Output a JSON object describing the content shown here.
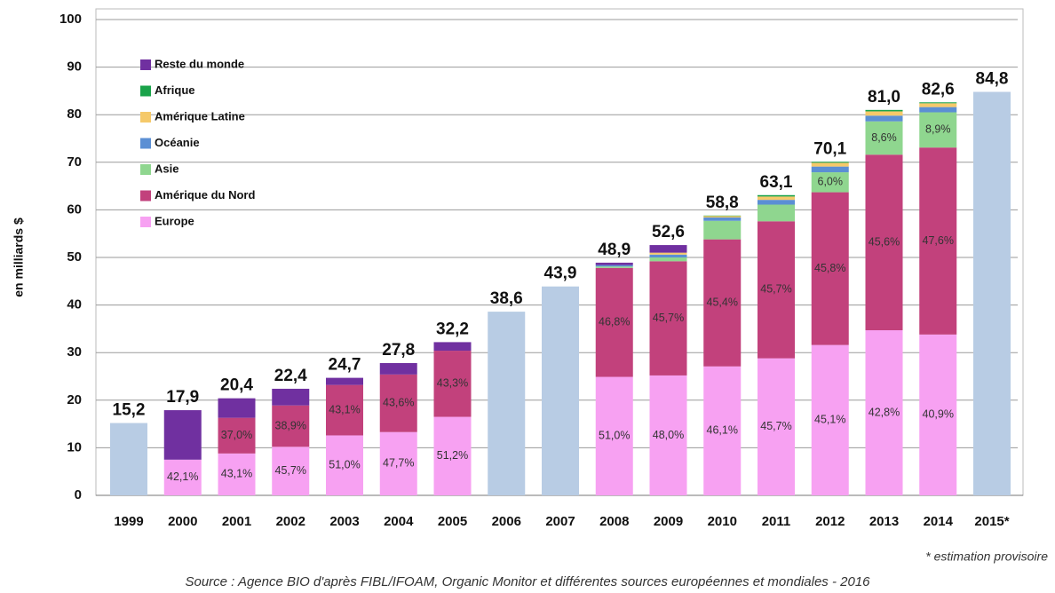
{
  "chart_data": {
    "type": "stacked-bar",
    "ylabel": "en milliards $",
    "footnote": "* estimation provisoire",
    "source": "Source : Agence BIO d'après FIBL/IFOAM, Organic Monitor et différentes sources européennes et mondiales - 2016",
    "categories": [
      "1999",
      "2000",
      "2001",
      "2002",
      "2003",
      "2004",
      "2005",
      "2006",
      "2007",
      "2008",
      "2009",
      "2010",
      "2011",
      "2012",
      "2013",
      "2014",
      "2015*"
    ],
    "ylim": [
      0,
      100
    ],
    "yticks": [
      0,
      10,
      20,
      30,
      40,
      50,
      60,
      70,
      80,
      90,
      100
    ],
    "grid": true,
    "totals": {
      "color": "#b8cce4",
      "values": [
        15.2,
        17.9,
        20.4,
        22.4,
        24.7,
        27.8,
        32.2,
        38.6,
        43.9,
        48.9,
        52.6,
        58.8,
        63.1,
        70.1,
        81.0,
        82.6,
        84.8
      ],
      "value_labels": [
        "15,2",
        "17,9",
        "20,4",
        "22,4",
        "24,7",
        "27,8",
        "32,2",
        "38,6",
        "43,9",
        "48,9",
        "52,6",
        "58,8",
        "63,1",
        "70,1",
        "81,0",
        "82,6",
        "84,8"
      ]
    },
    "series": [
      {
        "name": "Europe",
        "color": "#f7a1f2",
        "values": [
          null,
          7.5,
          8.8,
          10.2,
          12.6,
          13.3,
          16.5,
          null,
          null,
          24.9,
          25.2,
          27.1,
          28.8,
          31.6,
          34.7,
          33.8,
          null
        ],
        "share_labels": [
          null,
          "42,1%",
          "43,1%",
          "45,7%",
          "51,0%",
          "47,7%",
          "51,2%",
          null,
          null,
          "51,0%",
          "48,0%",
          "46,1%",
          "45,7%",
          "45,1%",
          "42,8%",
          "40,9%",
          null
        ]
      },
      {
        "name": "Amérique du Nord",
        "color": "#c2417c",
        "values": [
          null,
          null,
          7.5,
          8.7,
          10.6,
          12.1,
          13.9,
          null,
          null,
          22.9,
          24.0,
          26.7,
          28.8,
          32.1,
          36.9,
          39.3,
          null
        ],
        "share_labels": [
          null,
          null,
          "37,0%",
          "38,9%",
          "43,1%",
          "43,6%",
          "43,3%",
          null,
          null,
          "46,8%",
          "45,7%",
          "45,4%",
          "45,7%",
          "45,8%",
          "45,6%",
          "47,6%",
          null
        ]
      },
      {
        "name": "Asie",
        "color": "#8fd68f",
        "values": [
          null,
          null,
          null,
          null,
          null,
          null,
          null,
          null,
          null,
          0.3,
          0.8,
          3.9,
          3.5,
          4.2,
          7.0,
          7.4,
          null
        ],
        "share_labels": [
          null,
          null,
          null,
          null,
          null,
          null,
          null,
          null,
          null,
          null,
          null,
          null,
          null,
          "6,0%",
          "8,6%",
          "8,9%",
          null
        ]
      },
      {
        "name": "Océanie",
        "color": "#5b8fd4",
        "values": [
          null,
          null,
          null,
          null,
          null,
          null,
          null,
          null,
          null,
          0.3,
          0.6,
          0.7,
          1.0,
          1.2,
          1.2,
          1.1,
          null
        ]
      },
      {
        "name": "Amérique Latine",
        "color": "#f5c96a",
        "values": [
          null,
          null,
          null,
          null,
          null,
          null,
          null,
          null,
          null,
          null,
          0.4,
          0.3,
          0.7,
          0.8,
          0.9,
          0.8,
          null
        ]
      },
      {
        "name": "Afrique",
        "color": "#1aa34a",
        "values": [
          null,
          null,
          null,
          null,
          null,
          null,
          null,
          null,
          null,
          null,
          null,
          0.1,
          0.3,
          0.2,
          0.3,
          0.2,
          null
        ]
      },
      {
        "name": "Reste du monde",
        "color": "#7030a0",
        "values": [
          null,
          10.4,
          4.1,
          3.5,
          1.5,
          2.4,
          1.8,
          null,
          null,
          0.5,
          1.6,
          null,
          null,
          null,
          null,
          null,
          null
        ]
      }
    ]
  }
}
